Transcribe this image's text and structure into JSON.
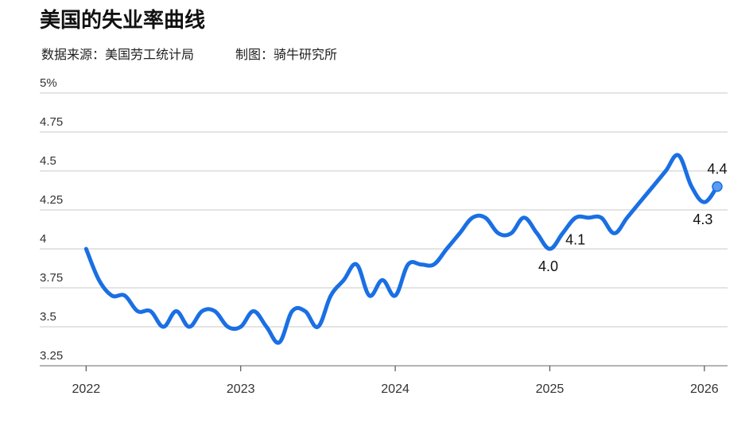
{
  "chart_data": {
    "type": "line",
    "title": "美国的失业率曲线",
    "source": "数据来源：美国劳工统计局",
    "credit": "制图：骑牛研究所",
    "x": [
      2022,
      2022.083,
      2022.167,
      2022.25,
      2022.333,
      2022.417,
      2022.5,
      2022.583,
      2022.667,
      2022.75,
      2022.833,
      2022.917,
      2023,
      2023.083,
      2023.167,
      2023.25,
      2023.333,
      2023.417,
      2023.5,
      2023.583,
      2023.667,
      2023.75,
      2023.833,
      2023.917,
      2024,
      2024.083,
      2024.167,
      2024.25,
      2024.333,
      2024.417,
      2024.5,
      2024.583,
      2024.667,
      2024.75,
      2024.833,
      2024.917,
      2025,
      2025.083,
      2025.167,
      2025.25,
      2025.333,
      2025.417,
      2025.5,
      2025.583,
      2025.667,
      2025.75,
      2025.833,
      2025.917,
      2026,
      2026.083
    ],
    "series": [
      {
        "color": "#1a6fe3",
        "values": [
          4.0,
          3.8,
          3.7,
          3.7,
          3.6,
          3.6,
          3.5,
          3.6,
          3.5,
          3.6,
          3.6,
          3.5,
          3.5,
          3.6,
          3.5,
          3.4,
          3.6,
          3.6,
          3.5,
          3.7,
          3.8,
          3.9,
          3.7,
          3.8,
          3.7,
          3.9,
          3.9,
          3.9,
          4.0,
          4.1,
          4.2,
          4.2,
          4.1,
          4.1,
          4.2,
          4.1,
          4.0,
          4.1,
          4.2,
          4.2,
          4.2,
          4.1,
          4.2,
          4.3,
          4.4,
          4.5,
          4.6,
          4.4,
          4.3,
          4.4
        ],
        "value_labels": [
          null,
          null,
          null,
          null,
          null,
          null,
          null,
          null,
          null,
          null,
          null,
          null,
          null,
          null,
          null,
          null,
          null,
          null,
          null,
          null,
          null,
          null,
          null,
          null,
          null,
          null,
          null,
          null,
          null,
          null,
          null,
          null,
          null,
          null,
          null,
          null,
          "4.0",
          "4.1",
          null,
          null,
          null,
          null,
          null,
          null,
          null,
          null,
          null,
          null,
          "4.3",
          "4.4"
        ]
      }
    ],
    "xlim": [
      2021.7,
      2026.15
    ],
    "xticks": [
      2022,
      2023,
      2024,
      2025,
      2026
    ],
    "ylim": [
      3.25,
      5
    ],
    "yticks": [
      3.25,
      3.5,
      3.75,
      4,
      4.25,
      4.5,
      4.75,
      {
        "value": 5,
        "label": "5%"
      }
    ],
    "grid": true
  }
}
